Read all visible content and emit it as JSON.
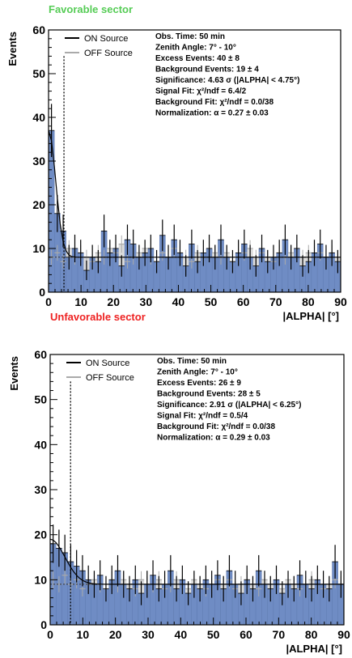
{
  "chart_data": [
    {
      "type": "bar",
      "title": "Favorable sector",
      "title_color": "#55cc55",
      "xlabel": "|ALPHA| [°]",
      "ylabel": "Events",
      "xlim": [
        0,
        90
      ],
      "ylim": [
        0,
        60
      ],
      "x_ticks": [
        0,
        10,
        20,
        30,
        40,
        50,
        60,
        70,
        80,
        90
      ],
      "y_ticks": [
        0,
        10,
        20,
        30,
        40,
        50,
        60
      ],
      "bin_width": 1.8,
      "cut_line_x": 4.75,
      "fit": {
        "base": 8,
        "amplitude": 29,
        "decay": 2.2
      },
      "legend": {
        "on_label": "ON Source",
        "off_label": "OFF Source",
        "placement": "top-left"
      },
      "stats": [
        "Obs. Time: 50 min",
        "Zenith Angle: 7° - 10°",
        "Excess Events: 40 ± 8",
        "Background Events: 19 ± 4",
        "Significance: 4.63 σ (|ALPHA| < 4.75°)",
        "Signal Fit: χ²/ndf = 6.4/2",
        "Background Fit: χ²/ndf = 0.0/38",
        "Normalization: α = 0.27 ± 0.03"
      ],
      "series": [
        {
          "name": "ON Source",
          "color": "#000000",
          "fill": "#6f8cc4",
          "values": [
            37,
            18,
            14,
            8,
            10,
            9,
            5,
            8,
            7,
            14,
            9,
            10,
            6,
            12,
            11,
            8,
            9,
            10,
            7,
            13,
            8,
            12,
            9,
            6,
            11,
            7,
            9,
            10,
            8,
            12,
            8,
            7,
            9,
            11,
            8,
            6,
            10,
            7,
            8,
            9,
            12,
            8,
            10,
            6,
            7,
            9,
            11,
            8,
            9,
            7
          ]
        },
        {
          "name": "OFF Source",
          "color": "#aaaaaa",
          "values": [
            8,
            9,
            7,
            10,
            8,
            9,
            8,
            7,
            9,
            8,
            10,
            9,
            11,
            7,
            8,
            9,
            10,
            8,
            7,
            9,
            8,
            10,
            9,
            8,
            7,
            9,
            8,
            10,
            9,
            8,
            9,
            7,
            8,
            9,
            10,
            8,
            9,
            8,
            7,
            9,
            8,
            9,
            10,
            8,
            9,
            8,
            9,
            8,
            9,
            8
          ]
        }
      ]
    },
    {
      "type": "bar",
      "title": "Unfavorable sector",
      "title_color": "#ee2222",
      "xlabel": "|ALPHA| [°]",
      "ylabel": "Events",
      "xlim": [
        0,
        90
      ],
      "ylim": [
        0,
        60
      ],
      "x_ticks": [
        0,
        10,
        20,
        30,
        40,
        50,
        60,
        70,
        80,
        90
      ],
      "y_ticks": [
        0,
        10,
        20,
        30,
        40,
        50,
        60
      ],
      "bin_width": 1.8,
      "cut_line_x": 6.25,
      "fit": {
        "base": 9,
        "amplitude": 10,
        "decay": 4.5
      },
      "legend": {
        "on_label": "ON Source",
        "off_label": "OFF Source",
        "placement": "top-left"
      },
      "stats": [
        "Obs. Time: 50 min",
        "Zenith Angle: 7° - 10°",
        "Excess Events: 26 ± 9",
        "Background Events: 28 ± 5",
        "Significance: 2.91 σ (|ALPHA| < 6.25°)",
        "Signal Fit: χ²/ndf = 0.5/4",
        "Background Fit: χ²/ndf = 0.0/38",
        "Normalization: α = 0.29 ± 0.03"
      ],
      "series": [
        {
          "name": "ON Source",
          "color": "#000000",
          "fill": "#6f8cc4",
          "values": [
            18,
            17,
            16,
            14,
            13,
            12,
            10,
            9,
            11,
            8,
            10,
            12,
            9,
            8,
            10,
            7,
            9,
            11,
            8,
            9,
            12,
            8,
            10,
            7,
            9,
            8,
            10,
            9,
            11,
            8,
            12,
            9,
            7,
            10,
            8,
            12,
            9,
            8,
            10,
            7,
            9,
            8,
            11,
            9,
            8,
            10,
            9,
            8,
            14,
            9
          ]
        },
        {
          "name": "OFF Source",
          "color": "#aaaaaa",
          "values": [
            10,
            9,
            11,
            9,
            10,
            8,
            9,
            10,
            9,
            8,
            10,
            9,
            10,
            9,
            8,
            10,
            9,
            9,
            10,
            8,
            9,
            10,
            9,
            8,
            10,
            9,
            8,
            9,
            10,
            9,
            10,
            8,
            9,
            10,
            9,
            8,
            10,
            9,
            9,
            8,
            10,
            9,
            8,
            9,
            10,
            9,
            8,
            9,
            10,
            9
          ]
        }
      ]
    }
  ]
}
